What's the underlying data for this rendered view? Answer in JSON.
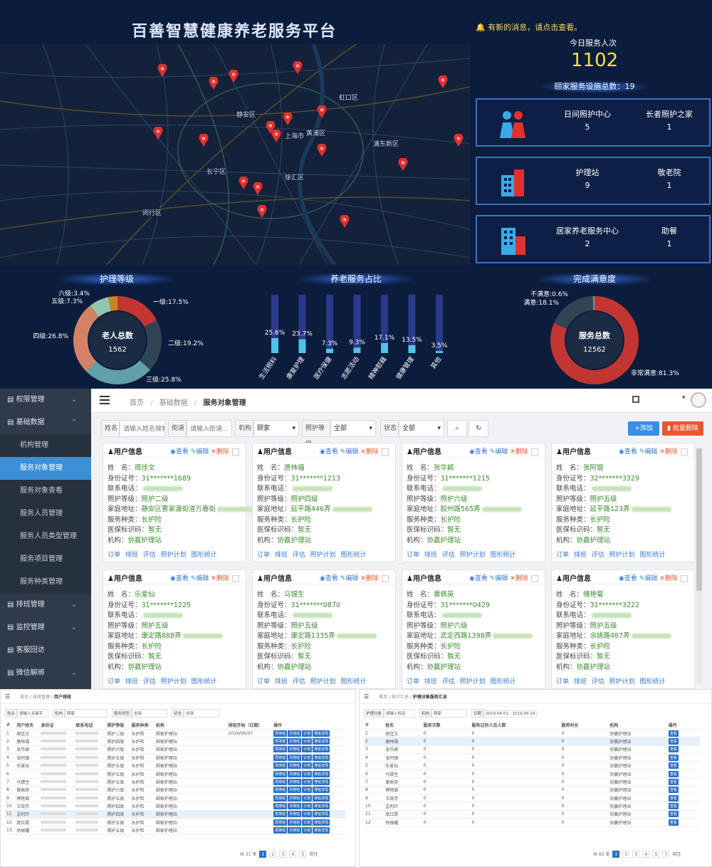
{
  "dashboard": {
    "title": "百善智慧健康养老服务平台",
    "notice": "有新的消息，请点击查看。",
    "today_label": "今日服务人次",
    "today_value": "1102",
    "facility_total": "颐家服务设施总数：19",
    "facilities": [
      {
        "icon": "people-icon",
        "c1_label": "日间照护中心",
        "c1_value": "5",
        "c2_label": "长者照护之家",
        "c2_value": "1"
      },
      {
        "icon": "building-icon",
        "c1_label": "护理站",
        "c1_value": "9",
        "c2_label": "敬老院",
        "c2_value": "1"
      },
      {
        "icon": "apartment-icon",
        "c1_label": "居家养老服务中心",
        "c1_value": "2",
        "c2_label": "助餐",
        "c2_value": "1"
      }
    ],
    "map_labels": [
      "虹口区",
      "静安区",
      "上海市",
      "黄浦区",
      "浦东新区",
      "徐汇区",
      "长宁区",
      "闵行区"
    ],
    "section_titles": [
      "护理等级",
      "养老服务占比",
      "完成满意度"
    ],
    "colors": {
      "bg": "#0c1c3c",
      "accent": "#f4e04d",
      "marker": "#e0312f"
    }
  },
  "chart_data": [
    {
      "type": "pie",
      "title": "护理等级",
      "center_label": "老人总数",
      "center_value": "1562",
      "slices": [
        {
          "name": "一级",
          "value": 17.5,
          "label": "一级:17.5%",
          "color": "#c23531"
        },
        {
          "name": "二级",
          "value": 19.2,
          "label": "二级:19.2%",
          "color": "#2f4554"
        },
        {
          "name": "三级",
          "value": 25.8,
          "label": "三级:25.8%",
          "color": "#61a0a8"
        },
        {
          "name": "四级",
          "value": 26.8,
          "label": "四级:26.8%",
          "color": "#d48265"
        },
        {
          "name": "五级",
          "value": 7.3,
          "label": "五级:7.3%",
          "color": "#91c7ae"
        },
        {
          "name": "六级",
          "value": 3.4,
          "label": "六级:3.4%",
          "color": "#ca8622"
        }
      ]
    },
    {
      "type": "bar",
      "title": "养老服务占比",
      "categories": [
        "生活照料",
        "康复护理",
        "医疗保健",
        "志愿活动",
        "精神慰藉",
        "健康管理",
        "其他"
      ],
      "values": [
        25.6,
        23.7,
        7.3,
        9.3,
        17.1,
        13.5,
        3.5
      ],
      "labels": [
        "25.6%",
        "23.7%",
        "7.3%",
        "9.3%",
        "17.1%",
        "13.5%",
        "3.5%"
      ],
      "ylim": [
        0,
        100
      ]
    },
    {
      "type": "pie",
      "title": "完成满意度",
      "center_label": "服务总数",
      "center_value": "12562",
      "slices": [
        {
          "name": "非常满意",
          "value": 81.3,
          "label": "非常满意:81.3%",
          "color": "#c23531"
        },
        {
          "name": "满意",
          "value": 18.1,
          "label": "满意:18.1%",
          "color": "#2f4554"
        },
        {
          "name": "不满意",
          "value": 0.6,
          "label": "不满意:0.6%",
          "color": "#61a0a8"
        }
      ]
    }
  ],
  "admin": {
    "sidebar": [
      {
        "label": "权限管理",
        "type": "item",
        "chev": "⌄"
      },
      {
        "label": "基础数据",
        "type": "item",
        "chev": "⌃"
      },
      {
        "label": "机构管理",
        "type": "sub"
      },
      {
        "label": "服务对象管理",
        "type": "sub",
        "active": true
      },
      {
        "label": "服务对象查看",
        "type": "sub"
      },
      {
        "label": "服务人员管理",
        "type": "sub"
      },
      {
        "label": "服务人员类型管理",
        "type": "sub"
      },
      {
        "label": "服务项目管理",
        "type": "sub"
      },
      {
        "label": "服务种类管理",
        "type": "sub"
      },
      {
        "label": "排班管理",
        "type": "item",
        "chev": "⌄"
      },
      {
        "label": "监控管理",
        "type": "item",
        "chev": "⌄"
      },
      {
        "label": "客服回访",
        "type": "item",
        "chev": ""
      },
      {
        "label": "微信解绑",
        "type": "item",
        "chev": "⌄"
      }
    ],
    "breadcrumb": {
      "home": "首页",
      "mid": "基础数据",
      "current": "服务对象管理"
    },
    "filter": {
      "name_label": "姓名",
      "name_placeholder": "请输入姓名搜索",
      "street_label": "街道",
      "street_placeholder": "请输入街道...",
      "org_label": "机构",
      "org_value": "颐家",
      "level_label": "照护等级",
      "level_value": "全部",
      "status_label": "状态",
      "status_value": "全部",
      "add_label": "+添加",
      "batch_delete_label": "批量删除"
    },
    "card_labels": {
      "title": "用户信息",
      "view": "查看",
      "edit": "编辑",
      "delete": "删除",
      "name": "姓　名：",
      "id": "身份证号：",
      "phone": "联系电话：",
      "level": "照护等级：",
      "address": "家庭地址：",
      "service": "服务种类：",
      "insurance": "医保标识码：",
      "org": "机构：",
      "footer": "订单 排班 评估 照护计划 图形统计"
    },
    "cards": [
      {
        "name": "周佳文",
        "id": "31*******1689",
        "level": "照护二级",
        "address": "静安区曹家渡街道万春街",
        "service": "长护险",
        "insurance": "暂无",
        "org": "协赢护理站"
      },
      {
        "name": "唐林福",
        "id": "31*******1213",
        "level": "照护四级",
        "address": "延平路446弄",
        "service": "长护险",
        "insurance": "暂无",
        "org": "协赢护理站"
      },
      {
        "name": "张华颖",
        "id": "31*******1215",
        "level": "照护六级",
        "address": "胶州路565弄",
        "service": "长护险",
        "insurance": "暂无",
        "org": "协赢护理站"
      },
      {
        "name": "张阿银",
        "id": "32*******3329",
        "level": "照护五级",
        "address": "延平路123弄",
        "service": "长护险",
        "insurance": "暂无",
        "org": "协赢护理站"
      },
      {
        "name": "乐爱仙",
        "id": "31*******1225",
        "level": "照护五级",
        "address": "康定路888弄",
        "service": "长护险",
        "insurance": "暂无",
        "org": "协赢护理站"
      },
      {
        "name": "马锡生",
        "id": "31*******0870",
        "level": "照护五级",
        "address": "康定路1335弄",
        "service": "长护险",
        "insurance": "暂无",
        "org": "协赢护理站"
      },
      {
        "name": "黄佩英",
        "id": "31*******0429",
        "level": "照护六级",
        "address": "武定西路1398弄",
        "service": "长护险",
        "insurance": "暂无",
        "org": "协赢护理站"
      },
      {
        "name": "傅艳菊",
        "id": "31*******3222",
        "level": "照护五级",
        "address": "余姚路487弄",
        "service": "长护险",
        "insurance": "暂无",
        "org": "协赢护理站"
      }
    ]
  },
  "panel_left": {
    "breadcrumb_home": "首页",
    "breadcrumb_mid": "排班管理",
    "breadcrumb_current": "用户排班",
    "filter_labels": [
      "姓名",
      "机构",
      "服务类型",
      "状态"
    ],
    "filter_values": [
      "请输入关键字",
      "颐家",
      "全部",
      "全部"
    ],
    "headers": [
      "#",
      "用户姓名",
      "身份证",
      "联系电话",
      "照护等级",
      "服务种类",
      "机构",
      "",
      "排班开始（日期）",
      "操作"
    ],
    "rows": [
      [
        "1",
        "周佳文",
        "照护二级",
        "长护险",
        "颐家护理站",
        "2019/06/07"
      ],
      [
        "2",
        "唐林福",
        "照护四级",
        "长护险",
        "颐家护理站",
        ""
      ],
      [
        "3",
        "张华颖",
        "照护六级",
        "长护险",
        "颐家护理站",
        ""
      ],
      [
        "4",
        "张阿银",
        "照护五级",
        "长护险",
        "颐家护理站",
        ""
      ],
      [
        "5",
        "乐爱仙",
        "照护五级",
        "长护险",
        "颐家护理站",
        ""
      ],
      [
        "6",
        "",
        "照护五级",
        "长护险",
        "颐家护理站",
        ""
      ],
      [
        "7",
        "马锡生",
        "照护五级",
        "长护险",
        "颐家护理站",
        ""
      ],
      [
        "8",
        "黄佩英",
        "照护六级",
        "长护险",
        "颐家护理站",
        ""
      ],
      [
        "9",
        "傅艳菊",
        "照护五级",
        "长护险",
        "颐家护理站",
        ""
      ],
      [
        "10",
        "王晓芳",
        "照护四级",
        "长护险",
        "颐家护理站",
        ""
      ],
      [
        "11",
        "孟利玲",
        "照护四级",
        "长护险",
        "颐家护理站",
        ""
      ],
      [
        "12",
        "庞红霞",
        "照护五级",
        "长护险",
        "颐家护理站",
        ""
      ],
      [
        "13",
        "徐根耀",
        "照护五级",
        "长护险",
        "颐家护理站",
        ""
      ]
    ],
    "row_buttons": [
      "周排班",
      "月排班",
      "计划",
      "排班详情"
    ],
    "pager_total": "共 51 条",
    "pages": [
      "1",
      "2",
      "3",
      "4",
      "5"
    ],
    "goto": "前往"
  },
  "panel_right": {
    "breadcrumb_home": "首页",
    "breadcrumb_mid": "统计汇总",
    "breadcrumb_current": "护理对象服务汇总",
    "filter_labels": [
      "护理对象",
      "机构",
      "日期"
    ],
    "filter_values": [
      "请输入姓名",
      "颐家",
      "2019-06-01 - 2019-06-29"
    ],
    "headers": [
      "#",
      "姓名",
      "服务次数",
      "服务过的人员人数",
      "服务时长",
      "机构",
      "操作"
    ],
    "rows": [
      [
        "1",
        "周佳文",
        "0",
        "0",
        "0",
        "协赢护理站"
      ],
      [
        "2",
        "唐林福",
        "0",
        "0",
        "0",
        "协赢护理站"
      ],
      [
        "3",
        "张华颖",
        "0",
        "0",
        "0",
        "协赢护理站"
      ],
      [
        "4",
        "张阿银",
        "0",
        "0",
        "0",
        "协赢护理站"
      ],
      [
        "5",
        "乐爱仙",
        "0",
        "0",
        "0",
        "协赢护理站"
      ],
      [
        "6",
        "马锡生",
        "0",
        "0",
        "0",
        "协赢护理站"
      ],
      [
        "7",
        "黄佩英",
        "0",
        "0",
        "0",
        "协赢护理站"
      ],
      [
        "8",
        "傅艳菊",
        "0",
        "0",
        "0",
        "协赢护理站"
      ],
      [
        "9",
        "王晓芳",
        "0",
        "0",
        "0",
        "协赢护理站"
      ],
      [
        "10",
        "孟利玲",
        "0",
        "0",
        "0",
        "协赢护理站"
      ],
      [
        "11",
        "庞红霞",
        "0",
        "0",
        "0",
        "协赢护理站"
      ],
      [
        "12",
        "徐根耀",
        "0",
        "0",
        "0",
        "协赢护理站"
      ]
    ],
    "row_button": "查看",
    "pager_total": "共 82 条",
    "pages": [
      "1",
      "2",
      "3",
      "4",
      "5",
      "7"
    ],
    "goto": "前往"
  }
}
